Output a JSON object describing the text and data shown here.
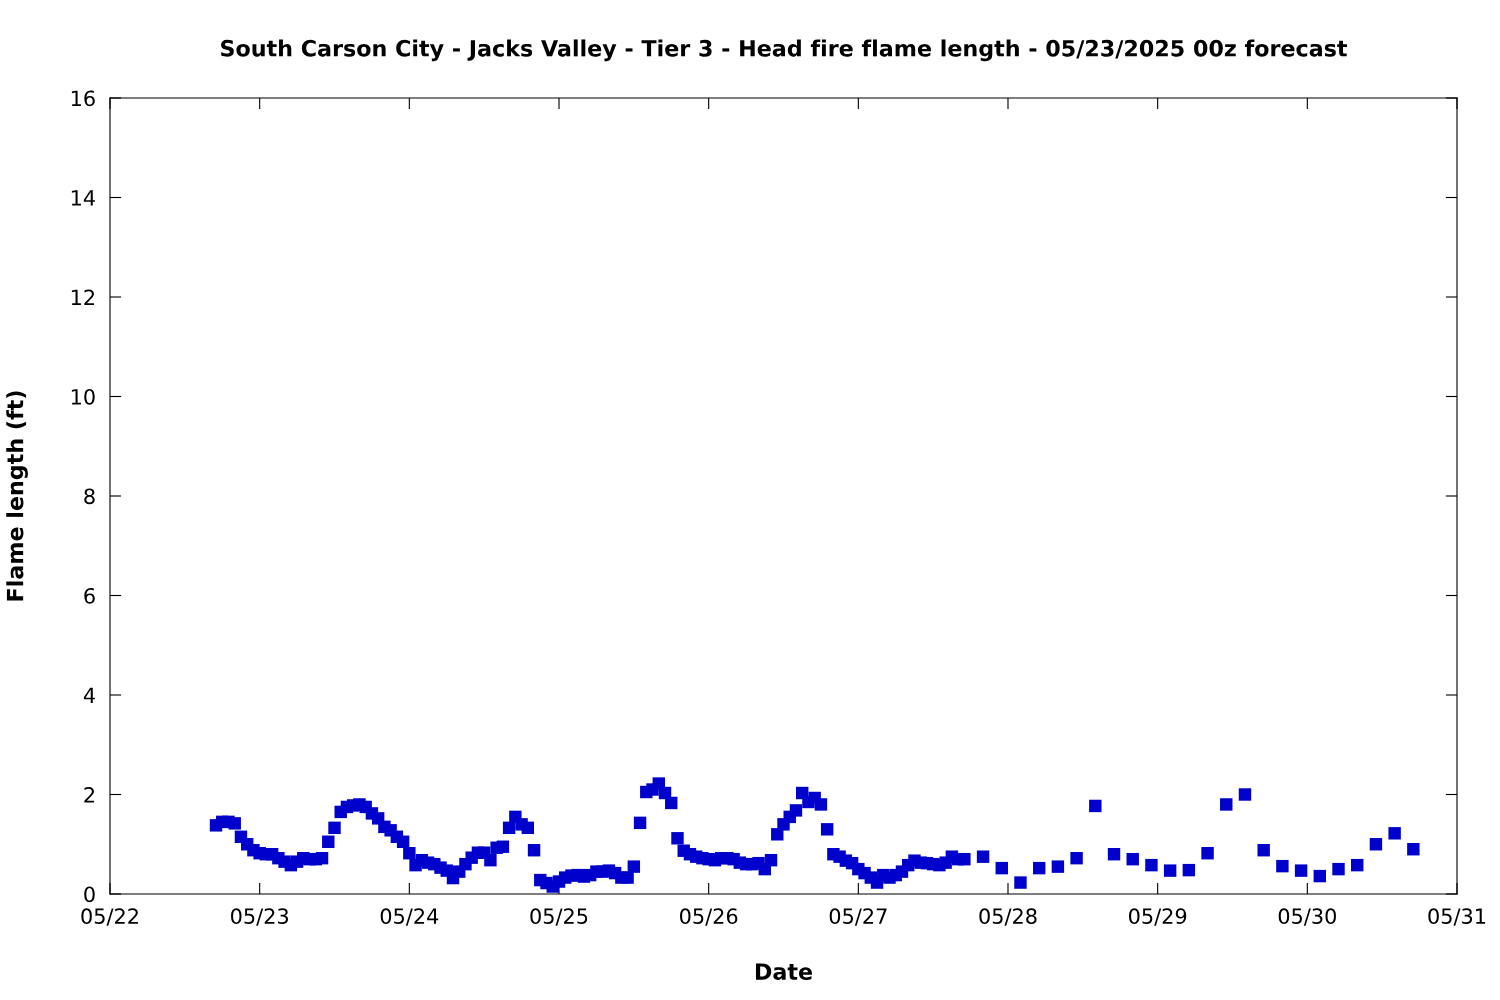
{
  "chart_data": {
    "type": "scatter",
    "title": "South Carson City - Jacks Valley - Tier 3 - Head fire flame length - 05/23/2025 00z forecast",
    "xlabel": "Date",
    "ylabel": "Flame length (ft)",
    "marker": "square",
    "grid": false,
    "legend": false,
    "xlim": [
      "2025-05-22",
      "2025-05-31"
    ],
    "xticks": [
      {
        "value": "2025-05-22",
        "label": "05/22"
      },
      {
        "value": "2025-05-23",
        "label": "05/23"
      },
      {
        "value": "2025-05-24",
        "label": "05/24"
      },
      {
        "value": "2025-05-25",
        "label": "05/25"
      },
      {
        "value": "2025-05-26",
        "label": "05/26"
      },
      {
        "value": "2025-05-27",
        "label": "05/27"
      },
      {
        "value": "2025-05-28",
        "label": "05/28"
      },
      {
        "value": "2025-05-29",
        "label": "05/29"
      },
      {
        "value": "2025-05-30",
        "label": "05/30"
      },
      {
        "value": "2025-05-31",
        "label": "05/31"
      }
    ],
    "ylim": [
      0,
      16
    ],
    "yticks": [
      0,
      2,
      4,
      6,
      8,
      10,
      12,
      14,
      16
    ],
    "series": [
      {
        "color": "#0000cc",
        "x": [
          "2025-05-22T17:00",
          "2025-05-22T18:00",
          "2025-05-22T19:00",
          "2025-05-22T20:00",
          "2025-05-22T21:00",
          "2025-05-22T22:00",
          "2025-05-22T23:00",
          "2025-05-23T00:00",
          "2025-05-23T01:00",
          "2025-05-23T02:00",
          "2025-05-23T03:00",
          "2025-05-23T04:00",
          "2025-05-23T05:00",
          "2025-05-23T06:00",
          "2025-05-23T07:00",
          "2025-05-23T08:00",
          "2025-05-23T09:00",
          "2025-05-23T10:00",
          "2025-05-23T11:00",
          "2025-05-23T12:00",
          "2025-05-23T13:00",
          "2025-05-23T14:00",
          "2025-05-23T15:00",
          "2025-05-23T16:00",
          "2025-05-23T17:00",
          "2025-05-23T18:00",
          "2025-05-23T19:00",
          "2025-05-23T20:00",
          "2025-05-23T21:00",
          "2025-05-23T22:00",
          "2025-05-23T23:00",
          "2025-05-24T00:00",
          "2025-05-24T01:00",
          "2025-05-24T02:00",
          "2025-05-24T03:00",
          "2025-05-24T04:00",
          "2025-05-24T05:00",
          "2025-05-24T06:00",
          "2025-05-24T07:00",
          "2025-05-24T08:00",
          "2025-05-24T09:00",
          "2025-05-24T10:00",
          "2025-05-24T11:00",
          "2025-05-24T12:00",
          "2025-05-24T13:00",
          "2025-05-24T14:00",
          "2025-05-24T15:00",
          "2025-05-24T16:00",
          "2025-05-24T17:00",
          "2025-05-24T18:00",
          "2025-05-24T19:00",
          "2025-05-24T20:00",
          "2025-05-24T21:00",
          "2025-05-24T22:00",
          "2025-05-24T23:00",
          "2025-05-25T00:00",
          "2025-05-25T01:00",
          "2025-05-25T02:00",
          "2025-05-25T03:00",
          "2025-05-25T04:00",
          "2025-05-25T05:00",
          "2025-05-25T06:00",
          "2025-05-25T07:00",
          "2025-05-25T08:00",
          "2025-05-25T09:00",
          "2025-05-25T10:00",
          "2025-05-25T11:00",
          "2025-05-25T12:00",
          "2025-05-25T13:00",
          "2025-05-25T14:00",
          "2025-05-25T15:00",
          "2025-05-25T16:00",
          "2025-05-25T17:00",
          "2025-05-25T18:00",
          "2025-05-25T19:00",
          "2025-05-25T20:00",
          "2025-05-25T21:00",
          "2025-05-25T22:00",
          "2025-05-25T23:00",
          "2025-05-26T00:00",
          "2025-05-26T01:00",
          "2025-05-26T02:00",
          "2025-05-26T03:00",
          "2025-05-26T04:00",
          "2025-05-26T05:00",
          "2025-05-26T06:00",
          "2025-05-26T07:00",
          "2025-05-26T08:00",
          "2025-05-26T09:00",
          "2025-05-26T10:00",
          "2025-05-26T11:00",
          "2025-05-26T12:00",
          "2025-05-26T13:00",
          "2025-05-26T14:00",
          "2025-05-26T15:00",
          "2025-05-26T16:00",
          "2025-05-26T17:00",
          "2025-05-26T18:00",
          "2025-05-26T19:00",
          "2025-05-26T20:00",
          "2025-05-26T21:00",
          "2025-05-26T22:00",
          "2025-05-26T23:00",
          "2025-05-27T00:00",
          "2025-05-27T01:00",
          "2025-05-27T02:00",
          "2025-05-27T03:00",
          "2025-05-27T04:00",
          "2025-05-27T05:00",
          "2025-05-27T06:00",
          "2025-05-27T07:00",
          "2025-05-27T08:00",
          "2025-05-27T09:00",
          "2025-05-27T10:00",
          "2025-05-27T11:00",
          "2025-05-27T12:00",
          "2025-05-27T13:00",
          "2025-05-27T14:00",
          "2025-05-27T15:00",
          "2025-05-27T16:00",
          "2025-05-27T17:00",
          "2025-05-27T20:00",
          "2025-05-27T23:00",
          "2025-05-28T02:00",
          "2025-05-28T05:00",
          "2025-05-28T08:00",
          "2025-05-28T11:00",
          "2025-05-28T14:00",
          "2025-05-28T17:00",
          "2025-05-28T20:00",
          "2025-05-28T23:00",
          "2025-05-29T02:00",
          "2025-05-29T05:00",
          "2025-05-29T08:00",
          "2025-05-29T11:00",
          "2025-05-29T14:00",
          "2025-05-29T17:00",
          "2025-05-29T20:00",
          "2025-05-29T23:00",
          "2025-05-30T02:00",
          "2025-05-30T05:00",
          "2025-05-30T08:00",
          "2025-05-30T11:00",
          "2025-05-30T14:00",
          "2025-05-30T17:00"
        ],
        "values": [
          1.38,
          1.45,
          1.45,
          1.42,
          1.15,
          1.0,
          0.88,
          0.82,
          0.8,
          0.8,
          0.72,
          0.65,
          0.58,
          0.65,
          0.72,
          0.7,
          0.7,
          0.72,
          1.05,
          1.33,
          1.65,
          1.75,
          1.78,
          1.8,
          1.75,
          1.62,
          1.52,
          1.35,
          1.28,
          1.15,
          1.05,
          0.82,
          0.58,
          0.68,
          0.63,
          0.6,
          0.53,
          0.47,
          0.32,
          0.45,
          0.6,
          0.73,
          0.83,
          0.83,
          0.68,
          0.93,
          0.95,
          1.33,
          1.55,
          1.4,
          1.33,
          0.88,
          0.28,
          0.22,
          0.15,
          0.25,
          0.33,
          0.37,
          0.38,
          0.35,
          0.38,
          0.45,
          0.45,
          0.47,
          0.42,
          0.33,
          0.33,
          0.55,
          1.43,
          2.05,
          2.1,
          2.22,
          2.03,
          1.83,
          1.12,
          0.87,
          0.8,
          0.75,
          0.72,
          0.7,
          0.68,
          0.72,
          0.72,
          0.7,
          0.63,
          0.6,
          0.6,
          0.62,
          0.5,
          0.68,
          1.2,
          1.4,
          1.55,
          1.68,
          2.03,
          1.85,
          1.93,
          1.8,
          1.3,
          0.8,
          0.75,
          0.67,
          0.62,
          0.5,
          0.42,
          0.33,
          0.23,
          0.38,
          0.33,
          0.38,
          0.45,
          0.58,
          0.67,
          0.63,
          0.62,
          0.6,
          0.58,
          0.63,
          0.75,
          0.7,
          0.7,
          0.75,
          0.52,
          0.23,
          0.52,
          0.55,
          0.72,
          1.77,
          0.8,
          0.7,
          0.58,
          0.47,
          0.48,
          0.82,
          1.8,
          2.0,
          0.88,
          0.56,
          0.47,
          0.36,
          0.5,
          0.58,
          1.0,
          1.22,
          0.9
        ]
      }
    ]
  }
}
